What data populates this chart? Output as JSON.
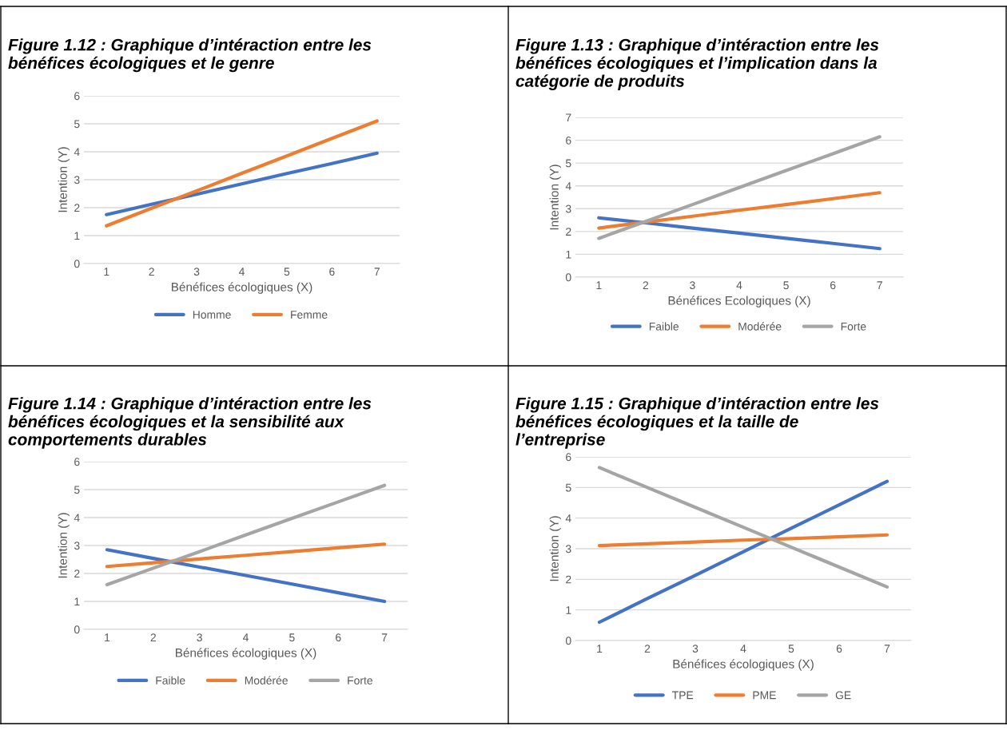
{
  "chart_data": [
    {
      "type": "line",
      "title": "Figure 1.12 : Graphique d’intéraction entre les bénéfices écologiques et le genre",
      "xlabel": "Bénéfices écologiques (X)",
      "ylabel": "Intention (Y)",
      "categories": [
        "1",
        "2",
        "3",
        "4",
        "5",
        "6",
        "7"
      ],
      "ylim": [
        0,
        6
      ],
      "yticks": [
        0,
        1,
        2,
        3,
        4,
        5,
        6
      ],
      "grid": "y",
      "legend": "bottom",
      "marker": "none",
      "line_style": "solid",
      "series": [
        {
          "name": "Homme",
          "color": "#4472c4",
          "values": [
            1.75,
            2.12,
            2.48,
            2.85,
            3.22,
            3.58,
            3.95
          ]
        },
        {
          "name": "Femme",
          "color": "#ed7d31",
          "values": [
            1.35,
            1.98,
            2.6,
            3.23,
            3.85,
            4.48,
            5.1
          ]
        }
      ]
    },
    {
      "type": "line",
      "title": "Figure 1.13 : Graphique d’intéraction entre les bénéfices écologiques et l’implication dans la catégorie de produits",
      "xlabel": "Bénéfices Ecologiques (X)",
      "ylabel": "Intention (Y)",
      "categories": [
        "1",
        "2",
        "3",
        "4",
        "5",
        "6",
        "7"
      ],
      "ylim": [
        0,
        7
      ],
      "yticks": [
        0,
        1,
        2,
        3,
        4,
        5,
        6,
        7
      ],
      "grid": "y",
      "legend": "bottom",
      "marker": "none",
      "line_style": "solid",
      "series": [
        {
          "name": "Faible",
          "color": "#4472c4",
          "values": [
            2.6,
            2.38,
            2.15,
            1.93,
            1.7,
            1.48,
            1.25
          ]
        },
        {
          "name": "Modérée",
          "color": "#ed7d31",
          "values": [
            2.15,
            2.41,
            2.67,
            2.93,
            3.18,
            3.44,
            3.7
          ]
        },
        {
          "name": "Forte",
          "color": "#a5a5a5",
          "values": [
            1.7,
            2.44,
            3.18,
            3.93,
            4.67,
            5.41,
            6.15
          ]
        }
      ]
    },
    {
      "type": "line",
      "title": "Figure 1.14 : Graphique d’intéraction entre les bénéfices écologiques et la sensibilité aux comportements durables",
      "xlabel": "Bénéfices écologiques (X)",
      "ylabel": "Intention (Y)",
      "categories": [
        "1",
        "2",
        "3",
        "4",
        "5",
        "6",
        "7"
      ],
      "ylim": [
        0,
        6
      ],
      "yticks": [
        0,
        1,
        2,
        3,
        4,
        5,
        6
      ],
      "grid": "y",
      "legend": "bottom",
      "marker": "none",
      "line_style": "solid",
      "series": [
        {
          "name": "Faible",
          "color": "#4472c4",
          "values": [
            2.85,
            2.54,
            2.23,
            1.93,
            1.62,
            1.31,
            1.0
          ]
        },
        {
          "name": "Modérée",
          "color": "#ed7d31",
          "values": [
            2.25,
            2.38,
            2.52,
            2.65,
            2.78,
            2.92,
            3.05
          ]
        },
        {
          "name": "Forte",
          "color": "#a5a5a5",
          "values": [
            1.6,
            2.19,
            2.78,
            3.38,
            3.97,
            4.56,
            5.15
          ]
        }
      ]
    },
    {
      "type": "line",
      "title": "Figure 1.15 : Graphique d’intéraction entre les bénéfices écologiques et la taille de l’entreprise",
      "xlabel": "Bénéfices écologiques (X)",
      "ylabel": "Intention (Y)",
      "categories": [
        "1",
        "2",
        "3",
        "4",
        "5",
        "6",
        "7"
      ],
      "ylim": [
        0,
        6
      ],
      "yticks": [
        0,
        1,
        2,
        3,
        4,
        5,
        6
      ],
      "grid": "y",
      "legend": "bottom",
      "marker": "none",
      "line_style": "solid",
      "series": [
        {
          "name": "TPE",
          "color": "#4472c4",
          "values": [
            0.6,
            1.37,
            2.13,
            2.9,
            3.67,
            4.43,
            5.2
          ]
        },
        {
          "name": "PME",
          "color": "#ed7d31",
          "values": [
            3.1,
            3.16,
            3.22,
            3.28,
            3.33,
            3.39,
            3.45
          ]
        },
        {
          "name": "GE",
          "color": "#a5a5a5",
          "values": [
            5.65,
            5.0,
            4.35,
            3.7,
            3.05,
            2.4,
            1.75
          ]
        }
      ]
    }
  ]
}
